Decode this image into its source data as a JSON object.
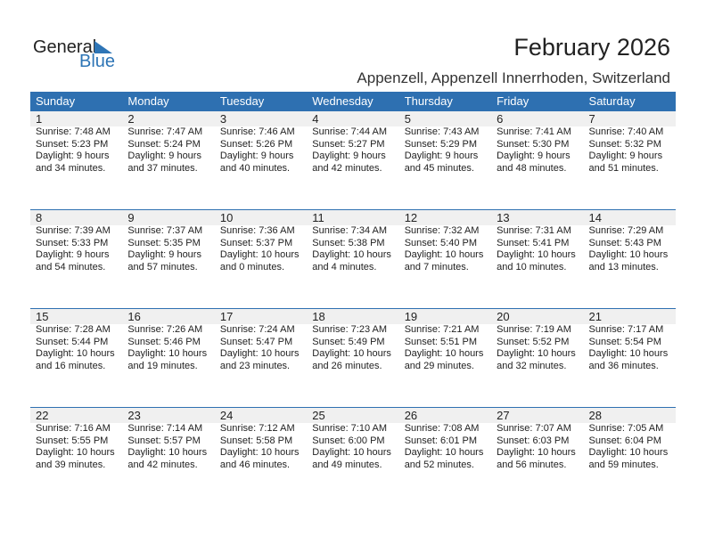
{
  "logo": {
    "text1": "General",
    "text2": "Blue",
    "accent": "#2e75b6"
  },
  "header": {
    "title": "February 2026",
    "location": "Appenzell, Appenzell Innerrhoden, Switzerland"
  },
  "colors": {
    "header_bg": "#2e70b1",
    "day_row_bg": "#f0f0f0"
  },
  "weekdays": [
    "Sunday",
    "Monday",
    "Tuesday",
    "Wednesday",
    "Thursday",
    "Friday",
    "Saturday"
  ],
  "weeks": [
    [
      {
        "day": "1",
        "sunrise": "Sunrise: 7:48 AM",
        "sunset": "Sunset: 5:23 PM",
        "daylight": "Daylight: 9 hours",
        "minutes": "and 34 minutes."
      },
      {
        "day": "2",
        "sunrise": "Sunrise: 7:47 AM",
        "sunset": "Sunset: 5:24 PM",
        "daylight": "Daylight: 9 hours",
        "minutes": "and 37 minutes."
      },
      {
        "day": "3",
        "sunrise": "Sunrise: 7:46 AM",
        "sunset": "Sunset: 5:26 PM",
        "daylight": "Daylight: 9 hours",
        "minutes": "and 40 minutes."
      },
      {
        "day": "4",
        "sunrise": "Sunrise: 7:44 AM",
        "sunset": "Sunset: 5:27 PM",
        "daylight": "Daylight: 9 hours",
        "minutes": "and 42 minutes."
      },
      {
        "day": "5",
        "sunrise": "Sunrise: 7:43 AM",
        "sunset": "Sunset: 5:29 PM",
        "daylight": "Daylight: 9 hours",
        "minutes": "and 45 minutes."
      },
      {
        "day": "6",
        "sunrise": "Sunrise: 7:41 AM",
        "sunset": "Sunset: 5:30 PM",
        "daylight": "Daylight: 9 hours",
        "minutes": "and 48 minutes."
      },
      {
        "day": "7",
        "sunrise": "Sunrise: 7:40 AM",
        "sunset": "Sunset: 5:32 PM",
        "daylight": "Daylight: 9 hours",
        "minutes": "and 51 minutes."
      }
    ],
    [
      {
        "day": "8",
        "sunrise": "Sunrise: 7:39 AM",
        "sunset": "Sunset: 5:33 PM",
        "daylight": "Daylight: 9 hours",
        "minutes": "and 54 minutes."
      },
      {
        "day": "9",
        "sunrise": "Sunrise: 7:37 AM",
        "sunset": "Sunset: 5:35 PM",
        "daylight": "Daylight: 9 hours",
        "minutes": "and 57 minutes."
      },
      {
        "day": "10",
        "sunrise": "Sunrise: 7:36 AM",
        "sunset": "Sunset: 5:37 PM",
        "daylight": "Daylight: 10 hours",
        "minutes": "and 0 minutes."
      },
      {
        "day": "11",
        "sunrise": "Sunrise: 7:34 AM",
        "sunset": "Sunset: 5:38 PM",
        "daylight": "Daylight: 10 hours",
        "minutes": "and 4 minutes."
      },
      {
        "day": "12",
        "sunrise": "Sunrise: 7:32 AM",
        "sunset": "Sunset: 5:40 PM",
        "daylight": "Daylight: 10 hours",
        "minutes": "and 7 minutes."
      },
      {
        "day": "13",
        "sunrise": "Sunrise: 7:31 AM",
        "sunset": "Sunset: 5:41 PM",
        "daylight": "Daylight: 10 hours",
        "minutes": "and 10 minutes."
      },
      {
        "day": "14",
        "sunrise": "Sunrise: 7:29 AM",
        "sunset": "Sunset: 5:43 PM",
        "daylight": "Daylight: 10 hours",
        "minutes": "and 13 minutes."
      }
    ],
    [
      {
        "day": "15",
        "sunrise": "Sunrise: 7:28 AM",
        "sunset": "Sunset: 5:44 PM",
        "daylight": "Daylight: 10 hours",
        "minutes": "and 16 minutes."
      },
      {
        "day": "16",
        "sunrise": "Sunrise: 7:26 AM",
        "sunset": "Sunset: 5:46 PM",
        "daylight": "Daylight: 10 hours",
        "minutes": "and 19 minutes."
      },
      {
        "day": "17",
        "sunrise": "Sunrise: 7:24 AM",
        "sunset": "Sunset: 5:47 PM",
        "daylight": "Daylight: 10 hours",
        "minutes": "and 23 minutes."
      },
      {
        "day": "18",
        "sunrise": "Sunrise: 7:23 AM",
        "sunset": "Sunset: 5:49 PM",
        "daylight": "Daylight: 10 hours",
        "minutes": "and 26 minutes."
      },
      {
        "day": "19",
        "sunrise": "Sunrise: 7:21 AM",
        "sunset": "Sunset: 5:51 PM",
        "daylight": "Daylight: 10 hours",
        "minutes": "and 29 minutes."
      },
      {
        "day": "20",
        "sunrise": "Sunrise: 7:19 AM",
        "sunset": "Sunset: 5:52 PM",
        "daylight": "Daylight: 10 hours",
        "minutes": "and 32 minutes."
      },
      {
        "day": "21",
        "sunrise": "Sunrise: 7:17 AM",
        "sunset": "Sunset: 5:54 PM",
        "daylight": "Daylight: 10 hours",
        "minutes": "and 36 minutes."
      }
    ],
    [
      {
        "day": "22",
        "sunrise": "Sunrise: 7:16 AM",
        "sunset": "Sunset: 5:55 PM",
        "daylight": "Daylight: 10 hours",
        "minutes": "and 39 minutes."
      },
      {
        "day": "23",
        "sunrise": "Sunrise: 7:14 AM",
        "sunset": "Sunset: 5:57 PM",
        "daylight": "Daylight: 10 hours",
        "minutes": "and 42 minutes."
      },
      {
        "day": "24",
        "sunrise": "Sunrise: 7:12 AM",
        "sunset": "Sunset: 5:58 PM",
        "daylight": "Daylight: 10 hours",
        "minutes": "and 46 minutes."
      },
      {
        "day": "25",
        "sunrise": "Sunrise: 7:10 AM",
        "sunset": "Sunset: 6:00 PM",
        "daylight": "Daylight: 10 hours",
        "minutes": "and 49 minutes."
      },
      {
        "day": "26",
        "sunrise": "Sunrise: 7:08 AM",
        "sunset": "Sunset: 6:01 PM",
        "daylight": "Daylight: 10 hours",
        "minutes": "and 52 minutes."
      },
      {
        "day": "27",
        "sunrise": "Sunrise: 7:07 AM",
        "sunset": "Sunset: 6:03 PM",
        "daylight": "Daylight: 10 hours",
        "minutes": "and 56 minutes."
      },
      {
        "day": "28",
        "sunrise": "Sunrise: 7:05 AM",
        "sunset": "Sunset: 6:04 PM",
        "daylight": "Daylight: 10 hours",
        "minutes": "and 59 minutes."
      }
    ]
  ]
}
